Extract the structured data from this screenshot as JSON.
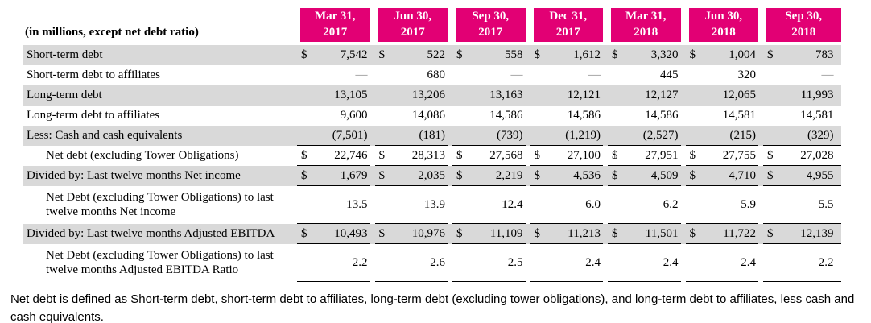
{
  "colors": {
    "accent": "#E20074",
    "stripe": "#D9D9D9",
    "header_text": "#FFFFFF"
  },
  "table": {
    "corner_label": "(in millions, except net debt ratio)",
    "columns": [
      {
        "line1": "Mar 31,",
        "line2": "2017"
      },
      {
        "line1": "Jun 30,",
        "line2": "2017"
      },
      {
        "line1": "Sep 30,",
        "line2": "2017"
      },
      {
        "line1": "Dec 31,",
        "line2": "2017"
      },
      {
        "line1": "Mar 31,",
        "line2": "2018"
      },
      {
        "line1": "Jun 30,",
        "line2": "2018"
      },
      {
        "line1": "Sep 30,",
        "line2": "2018"
      }
    ],
    "rows": [
      {
        "label": "Short-term debt",
        "indent": false,
        "two_line": false,
        "dollar": true,
        "shaded": true,
        "rule_bottom": false,
        "values": [
          "7,542",
          "522",
          "558",
          "1,612",
          "3,320",
          "1,004",
          "783"
        ]
      },
      {
        "label": "Short-term debt to affiliates",
        "indent": false,
        "two_line": false,
        "dollar": false,
        "shaded": false,
        "rule_bottom": false,
        "values": [
          "—",
          "680",
          "—",
          "—",
          "445",
          "320",
          "—"
        ]
      },
      {
        "label": "Long-term debt",
        "indent": false,
        "two_line": false,
        "dollar": false,
        "shaded": true,
        "rule_bottom": false,
        "values": [
          "13,105",
          "13,206",
          "13,163",
          "12,121",
          "12,127",
          "12,065",
          "11,993"
        ]
      },
      {
        "label": "Long-term debt to affiliates",
        "indent": false,
        "two_line": false,
        "dollar": false,
        "shaded": false,
        "rule_bottom": false,
        "values": [
          "9,600",
          "14,086",
          "14,586",
          "14,586",
          "14,586",
          "14,581",
          "14,581"
        ]
      },
      {
        "label": "Less: Cash and cash equivalents",
        "indent": false,
        "two_line": false,
        "dollar": false,
        "shaded": true,
        "rule_bottom": true,
        "values": [
          "(7,501)",
          "(181)",
          "(739)",
          "(1,219)",
          "(2,527)",
          "(215)",
          "(329)"
        ]
      },
      {
        "label": "Net debt (excluding Tower Obligations)",
        "indent": true,
        "two_line": false,
        "dollar": true,
        "shaded": false,
        "rule_bottom": true,
        "values": [
          "22,746",
          "28,313",
          "27,568",
          "27,100",
          "27,951",
          "27,755",
          "27,028"
        ]
      },
      {
        "label": "Divided by: Last twelve months Net income",
        "indent": false,
        "two_line": false,
        "dollar": true,
        "shaded": true,
        "rule_bottom": true,
        "values": [
          "1,679",
          "2,035",
          "2,219",
          "4,536",
          "4,509",
          "4,710",
          "4,955"
        ]
      },
      {
        "label": "Net Debt (excluding Tower Obligations) to last twelve months Net income",
        "indent": true,
        "two_line": true,
        "dollar": false,
        "shaded": false,
        "rule_bottom": true,
        "values": [
          "13.5",
          "13.9",
          "12.4",
          "6.0",
          "6.2",
          "5.9",
          "5.5"
        ]
      },
      {
        "label": "Divided by: Last twelve months Adjusted EBITDA",
        "indent": false,
        "two_line": false,
        "dollar": true,
        "shaded": true,
        "rule_bottom": true,
        "values": [
          "10,493",
          "10,976",
          "11,109",
          "11,213",
          "11,501",
          "11,722",
          "12,139"
        ]
      },
      {
        "label": "Net Debt (excluding Tower Obligations) to last twelve months Adjusted EBITDA Ratio",
        "indent": true,
        "two_line": true,
        "dollar": false,
        "shaded": false,
        "rule_bottom": true,
        "values": [
          "2.2",
          "2.6",
          "2.5",
          "2.4",
          "2.4",
          "2.4",
          "2.2"
        ]
      }
    ]
  },
  "footnote": "Net debt is defined as Short-term debt, short-term debt to affiliates, long-term debt (excluding tower obligations), and long-term debt to affiliates, less cash and cash equivalents."
}
